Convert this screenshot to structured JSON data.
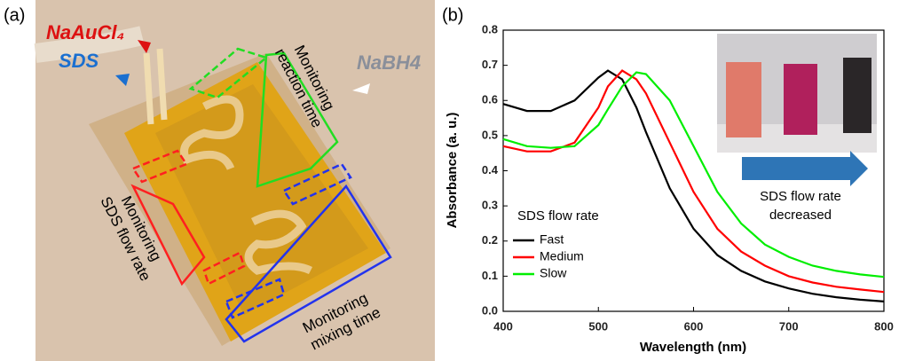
{
  "panel_a": {
    "label": "(a)",
    "reagent_1": "NaAuCl₄",
    "reagent_2": "SDS",
    "reagent_3": "NaBH4",
    "monitor_reaction": [
      "Monitoring",
      "reaction time"
    ],
    "monitor_sds": [
      "Monitoring",
      "SDS flow rate"
    ],
    "monitor_mixing": [
      "Monitoring",
      "mixing time"
    ]
  },
  "chart_data": {
    "type": "line",
    "panel_label": "(b)",
    "x_label": "Wavelength (nm)",
    "y_label": "Absorbance (a. u.)",
    "x": [
      400,
      425,
      450,
      475,
      500,
      510,
      525,
      540,
      550,
      575,
      600,
      625,
      650,
      675,
      700,
      725,
      750,
      775,
      800
    ],
    "series": [
      {
        "name": "Fast",
        "color": "#000000",
        "values": [
          0.59,
          0.57,
          0.57,
          0.6,
          0.665,
          0.685,
          0.66,
          0.58,
          0.51,
          0.35,
          0.235,
          0.16,
          0.115,
          0.085,
          0.065,
          0.05,
          0.04,
          0.033,
          0.028
        ]
      },
      {
        "name": "Medium",
        "color": "#ff0000",
        "values": [
          0.47,
          0.455,
          0.455,
          0.48,
          0.58,
          0.64,
          0.685,
          0.66,
          0.62,
          0.48,
          0.34,
          0.235,
          0.17,
          0.13,
          0.1,
          0.082,
          0.07,
          0.062,
          0.055
        ]
      },
      {
        "name": "Slow",
        "color": "#00ee00",
        "values": [
          0.49,
          0.47,
          0.465,
          0.47,
          0.53,
          0.575,
          0.64,
          0.68,
          0.675,
          0.6,
          0.47,
          0.34,
          0.25,
          0.19,
          0.155,
          0.13,
          0.115,
          0.105,
          0.098
        ]
      }
    ],
    "legend_title": "SDS flow rate",
    "annotation": [
      "SDS flow rate",
      "decreased"
    ],
    "xlim": [
      400,
      800
    ],
    "xticks": [
      400,
      500,
      600,
      700,
      800
    ],
    "ylim": [
      0,
      0.8
    ],
    "yticks": [
      {
        "value": 0,
        "label": "0.0"
      },
      0.1,
      0.2,
      0.3,
      0.4,
      0.5,
      0.6,
      0.7,
      0.8
    ]
  }
}
